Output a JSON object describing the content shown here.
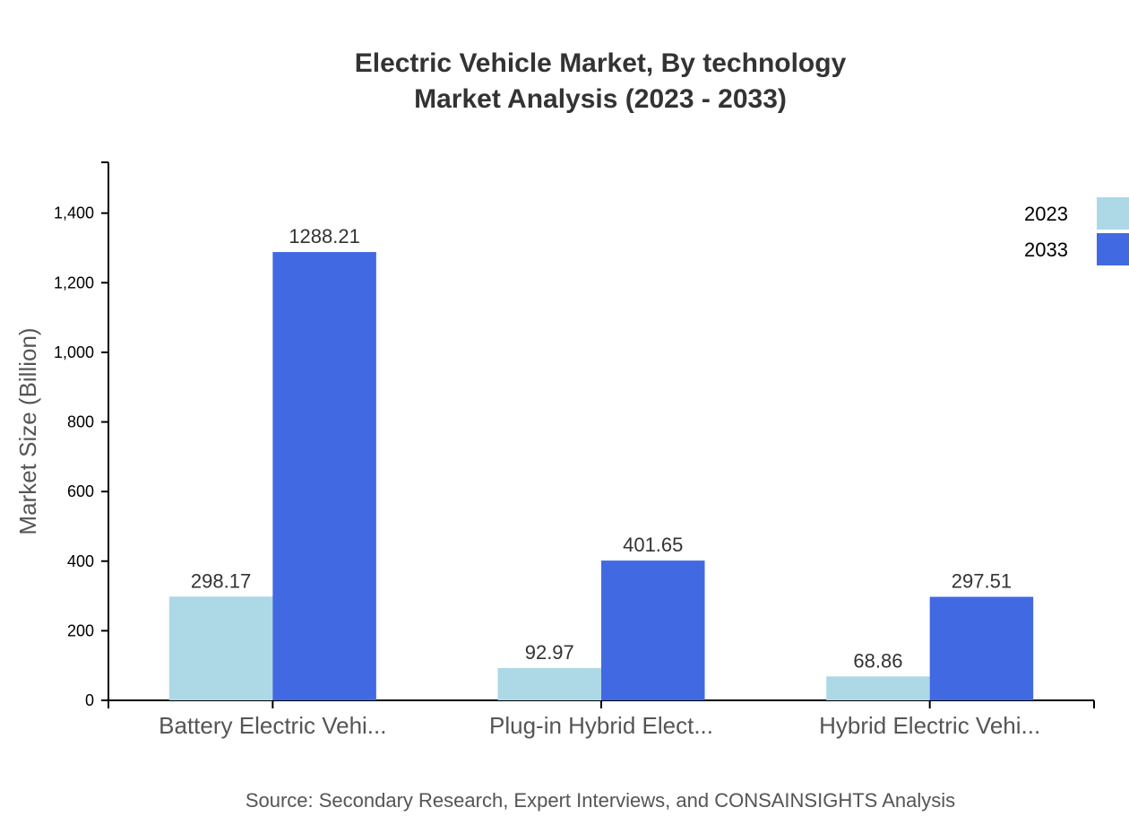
{
  "chart_data": {
    "type": "bar",
    "title": "Electric Vehicle Market, By technology",
    "subtitle": "Market Analysis (2023 - 2033)",
    "xlabel": "",
    "ylabel": "Market Size (Billion)",
    "categories": [
      "Battery Electric Vehi...",
      "Plug-in Hybrid Elect...",
      "Hybrid Electric Vehi..."
    ],
    "series": [
      {
        "name": "2023",
        "color": "#ADD8E6",
        "values": [
          298.17,
          92.97,
          68.86
        ]
      },
      {
        "name": "2033",
        "color": "#4169E1",
        "values": [
          1288.21,
          401.65,
          297.51
        ]
      }
    ],
    "ylim": [
      0,
      1546
    ],
    "yticks": [
      0,
      200,
      400,
      600,
      800,
      1000,
      1200,
      1400
    ],
    "ytick_labels": [
      "0",
      "200",
      "400",
      "600",
      "800",
      "1,000",
      "1,200",
      "1,400"
    ],
    "grid": false,
    "legend_position": "top-right",
    "source": "Source: Secondary Research, Expert Interviews, and CONSAINSIGHTS Analysis"
  }
}
